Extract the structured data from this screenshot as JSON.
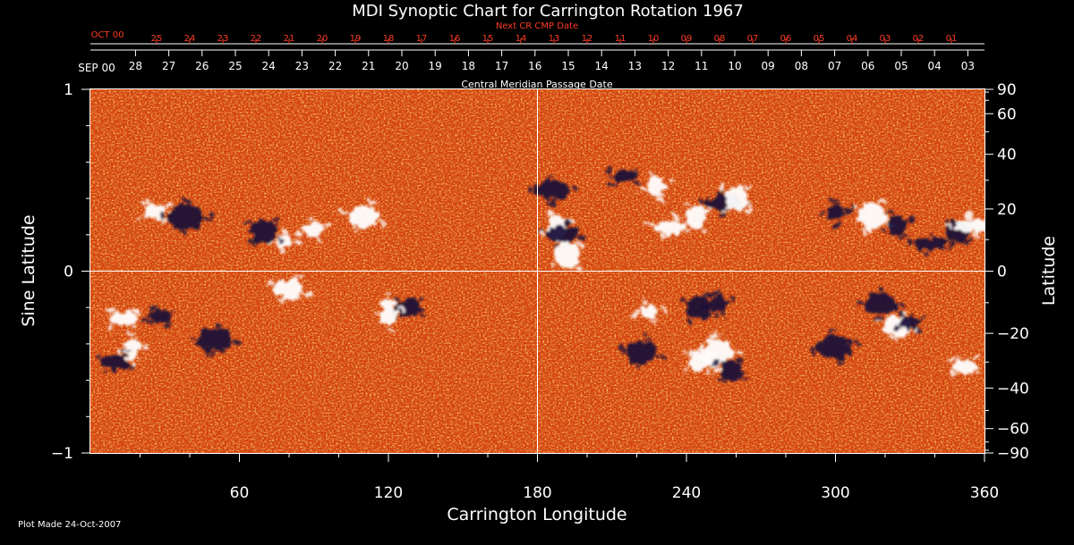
{
  "chart_data": {
    "type": "heatmap",
    "title": "MDI Synoptic Chart for Carrington Rotation 1967",
    "xlabel": "Carrington Longitude",
    "ylabel_left": "Sine Latitude",
    "ylabel_right": "Latitude",
    "xlim": [
      0,
      360
    ],
    "ylim": [
      -1,
      1
    ],
    "x_ticks": [
      60,
      120,
      180,
      240,
      300,
      360
    ],
    "y_left_ticks": [
      {
        "value": -1,
        "label": "−1"
      },
      {
        "value": 0,
        "label": "0"
      },
      {
        "value": 1,
        "label": "1"
      }
    ],
    "y_right_ticks_deg": [
      {
        "value": 90,
        "label": "90"
      },
      {
        "value": 60,
        "label": "60"
      },
      {
        "value": 40,
        "label": "40"
      },
      {
        "value": 20,
        "label": "20"
      },
      {
        "value": 0,
        "label": "0"
      },
      {
        "value": -20,
        "label": "−20"
      },
      {
        "value": -40,
        "label": "−40"
      },
      {
        "value": -60,
        "label": "−60"
      },
      {
        "value": -90,
        "label": "−90"
      }
    ],
    "top_axis_label": "Central Meridian Passage Date",
    "cmp_month_label": "SEP 00",
    "cmp_dates": [
      "28",
      "27",
      "26",
      "25",
      "24",
      "23",
      "22",
      "21",
      "20",
      "19",
      "18",
      "17",
      "16",
      "15",
      "14",
      "13",
      "12",
      "11",
      "10",
      "09",
      "08",
      "07",
      "06",
      "05",
      "04",
      "03"
    ],
    "next_cr_label": "Next CR CMP Date",
    "next_cr_month_label": "OCT 00",
    "next_cr_dates": [
      "25",
      "24",
      "23",
      "22",
      "21",
      "20",
      "19",
      "18",
      "17",
      "16",
      "15",
      "14",
      "13",
      "12",
      "11",
      "10",
      "09",
      "08",
      "07",
      "06",
      "05",
      "04",
      "03",
      "02",
      "01"
    ],
    "crosshair": {
      "longitude": 180,
      "sine_latitude": 0
    },
    "colors": {
      "background": "#000000",
      "field_base": "#e04a08",
      "positive": "#ffffff",
      "negative": "#140a38",
      "accent_text": "#ff3b24"
    },
    "active_regions": [
      {
        "lon": 78,
        "sinlat": 0.16,
        "polarity": "positive"
      },
      {
        "lon": 70,
        "sinlat": 0.22,
        "polarity": "negative"
      },
      {
        "lon": 90,
        "sinlat": 0.23,
        "polarity": "positive"
      },
      {
        "lon": 110,
        "sinlat": 0.3,
        "polarity": "positive"
      },
      {
        "lon": 26,
        "sinlat": 0.33,
        "polarity": "positive"
      },
      {
        "lon": 38,
        "sinlat": 0.3,
        "polarity": "negative"
      },
      {
        "lon": 128,
        "sinlat": -0.2,
        "polarity": "negative"
      },
      {
        "lon": 120,
        "sinlat": -0.23,
        "polarity": "positive"
      },
      {
        "lon": 80,
        "sinlat": -0.1,
        "polarity": "positive"
      },
      {
        "lon": 28,
        "sinlat": -0.25,
        "polarity": "negative"
      },
      {
        "lon": 50,
        "sinlat": -0.38,
        "polarity": "negative"
      },
      {
        "lon": 13,
        "sinlat": -0.26,
        "polarity": "positive"
      },
      {
        "lon": 17,
        "sinlat": -0.43,
        "polarity": "positive"
      },
      {
        "lon": 10,
        "sinlat": -0.5,
        "polarity": "negative"
      },
      {
        "lon": 188,
        "sinlat": 0.24,
        "polarity": "positive"
      },
      {
        "lon": 190,
        "sinlat": 0.2,
        "polarity": "negative"
      },
      {
        "lon": 192,
        "sinlat": 0.09,
        "polarity": "positive"
      },
      {
        "lon": 186,
        "sinlat": 0.45,
        "polarity": "negative"
      },
      {
        "lon": 215,
        "sinlat": 0.52,
        "polarity": "negative"
      },
      {
        "lon": 228,
        "sinlat": 0.47,
        "polarity": "positive"
      },
      {
        "lon": 233,
        "sinlat": 0.24,
        "polarity": "positive"
      },
      {
        "lon": 244,
        "sinlat": 0.3,
        "polarity": "positive"
      },
      {
        "lon": 255,
        "sinlat": 0.38,
        "polarity": "negative"
      },
      {
        "lon": 260,
        "sinlat": 0.4,
        "polarity": "positive"
      },
      {
        "lon": 300,
        "sinlat": 0.32,
        "polarity": "negative"
      },
      {
        "lon": 315,
        "sinlat": 0.3,
        "polarity": "positive"
      },
      {
        "lon": 325,
        "sinlat": 0.25,
        "polarity": "negative"
      },
      {
        "lon": 338,
        "sinlat": 0.15,
        "polarity": "negative"
      },
      {
        "lon": 349,
        "sinlat": 0.22,
        "polarity": "negative"
      },
      {
        "lon": 355,
        "sinlat": 0.25,
        "polarity": "positive"
      },
      {
        "lon": 245,
        "sinlat": -0.2,
        "polarity": "negative"
      },
      {
        "lon": 253,
        "sinlat": -0.18,
        "polarity": "negative"
      },
      {
        "lon": 222,
        "sinlat": -0.45,
        "polarity": "negative"
      },
      {
        "lon": 245,
        "sinlat": -0.5,
        "polarity": "positive"
      },
      {
        "lon": 252,
        "sinlat": -0.45,
        "polarity": "positive"
      },
      {
        "lon": 258,
        "sinlat": -0.55,
        "polarity": "negative"
      },
      {
        "lon": 225,
        "sinlat": -0.22,
        "polarity": "positive"
      },
      {
        "lon": 325,
        "sinlat": -0.3,
        "polarity": "positive"
      },
      {
        "lon": 330,
        "sinlat": -0.28,
        "polarity": "negative"
      },
      {
        "lon": 318,
        "sinlat": -0.18,
        "polarity": "negative"
      },
      {
        "lon": 352,
        "sinlat": -0.52,
        "polarity": "positive"
      },
      {
        "lon": 300,
        "sinlat": -0.42,
        "polarity": "negative"
      }
    ]
  },
  "footer": {
    "plot_made": "Plot Made 24-Oct-2007"
  }
}
